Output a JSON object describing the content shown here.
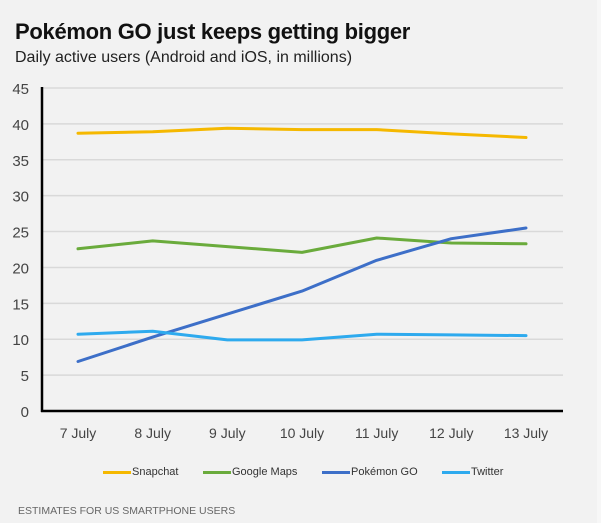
{
  "header": {
    "title": "Pokémon GO just keeps getting bigger",
    "subtitle": "Daily active users (Android and iOS, in millions)"
  },
  "footer": {
    "note": "ESTIMATES FOR US SMARTPHONE USERS"
  },
  "chart_data": {
    "type": "line",
    "title": "Pokémon GO just keeps getting bigger",
    "subtitle": "Daily active users (Android and iOS, in millions)",
    "xlabel": "",
    "ylabel": "",
    "categories": [
      "7 July",
      "8 July",
      "9 July",
      "10 July",
      "11 July",
      "12 July",
      "13 July"
    ],
    "ylim": [
      0,
      45
    ],
    "yticks": [
      "0",
      "5",
      "10",
      "15",
      "20",
      "25",
      "30",
      "35",
      "40",
      "45"
    ],
    "grid": true,
    "legend_position": "bottom",
    "series": [
      {
        "name": "Snapchat",
        "color": "#f5b800",
        "values": [
          38.7,
          38.9,
          39.4,
          39.2,
          39.2,
          38.6,
          38.1
        ]
      },
      {
        "name": "Google Maps",
        "color": "#6aab3c",
        "values": [
          22.6,
          23.7,
          22.9,
          22.1,
          24.1,
          23.4,
          23.3
        ]
      },
      {
        "name": "Pokémon GO",
        "color": "#3d6fc8",
        "values": [
          6.9,
          10.3,
          13.5,
          16.7,
          21.0,
          24.0,
          25.5
        ]
      },
      {
        "name": "Twitter",
        "color": "#2eaaee",
        "values": [
          10.7,
          11.1,
          9.9,
          9.9,
          10.7,
          10.6,
          10.5
        ]
      }
    ]
  }
}
